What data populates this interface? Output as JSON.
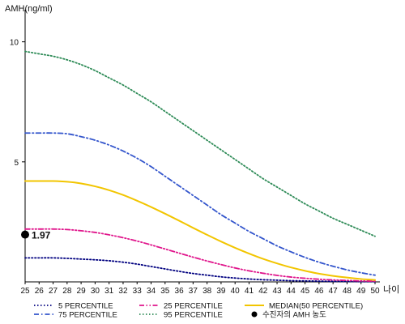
{
  "chart_data": {
    "type": "line",
    "ylabel": "AMH(ng/ml)",
    "xlabel": "나이",
    "x": [
      25,
      26,
      27,
      28,
      29,
      30,
      31,
      32,
      33,
      34,
      35,
      36,
      37,
      38,
      39,
      40,
      41,
      42,
      43,
      44,
      45,
      46,
      47,
      48,
      49,
      50
    ],
    "x_ticks": [
      "25",
      "26",
      "27",
      "28",
      "29",
      "30",
      "31",
      "32",
      "33",
      "34",
      "35",
      "36",
      "37",
      "38",
      "39",
      "40",
      "41",
      "42",
      "43",
      "44",
      "45",
      "46",
      "47",
      "48",
      "49",
      "50"
    ],
    "y_ticks": [
      "5",
      "10"
    ],
    "y_tick_values": [
      5,
      10
    ],
    "xlim": [
      25,
      50
    ],
    "ylim": [
      0,
      11
    ],
    "grid": false,
    "legend_position": "bottom",
    "series": [
      {
        "name": "5 PERCENTILE",
        "color": "#000080",
        "dash": "dotted",
        "values": [
          1.0,
          1.0,
          1.0,
          0.98,
          0.95,
          0.92,
          0.88,
          0.82,
          0.74,
          0.64,
          0.54,
          0.44,
          0.35,
          0.28,
          0.21,
          0.16,
          0.12,
          0.09,
          0.07,
          0.05,
          0.04,
          0.03,
          0.02,
          0.02,
          0.01,
          0.01
        ]
      },
      {
        "name": "75 PERCENTILE",
        "color": "#3355cc",
        "dash": "dashdot",
        "values": [
          6.2,
          6.2,
          6.2,
          6.17,
          6.05,
          5.9,
          5.7,
          5.45,
          5.15,
          4.8,
          4.4,
          4.0,
          3.6,
          3.2,
          2.8,
          2.45,
          2.1,
          1.8,
          1.5,
          1.25,
          1.02,
          0.82,
          0.65,
          0.5,
          0.38,
          0.28
        ]
      },
      {
        "name": "25 PERCENTILE",
        "color": "#e0168c",
        "dash": "dashdotdot",
        "values": [
          2.2,
          2.2,
          2.2,
          2.18,
          2.13,
          2.06,
          1.96,
          1.84,
          1.7,
          1.54,
          1.37,
          1.2,
          1.03,
          0.87,
          0.72,
          0.58,
          0.46,
          0.36,
          0.27,
          0.2,
          0.15,
          0.11,
          0.08,
          0.06,
          0.04,
          0.03
        ]
      },
      {
        "name": "95 PERCENTILE",
        "color": "#2e8b57",
        "dash": "dotted",
        "values": [
          9.6,
          9.5,
          9.4,
          9.25,
          9.05,
          8.8,
          8.5,
          8.2,
          7.85,
          7.5,
          7.1,
          6.7,
          6.3,
          5.9,
          5.5,
          5.1,
          4.7,
          4.3,
          3.95,
          3.6,
          3.25,
          2.95,
          2.65,
          2.4,
          2.15,
          1.9
        ]
      },
      {
        "name": "MEDIAN(50 PERCENTILE)",
        "color": "#f2c500",
        "dash": "solid",
        "values": [
          4.2,
          4.2,
          4.2,
          4.17,
          4.1,
          3.98,
          3.82,
          3.62,
          3.38,
          3.12,
          2.84,
          2.55,
          2.25,
          1.96,
          1.68,
          1.42,
          1.18,
          0.96,
          0.77,
          0.6,
          0.46,
          0.34,
          0.25,
          0.18,
          0.12,
          0.08
        ]
      }
    ],
    "marker": {
      "legend_label": "수진자의 AMH 농도",
      "x": 25,
      "y": 1.97,
      "label": "1.97",
      "color": "#000000"
    }
  }
}
